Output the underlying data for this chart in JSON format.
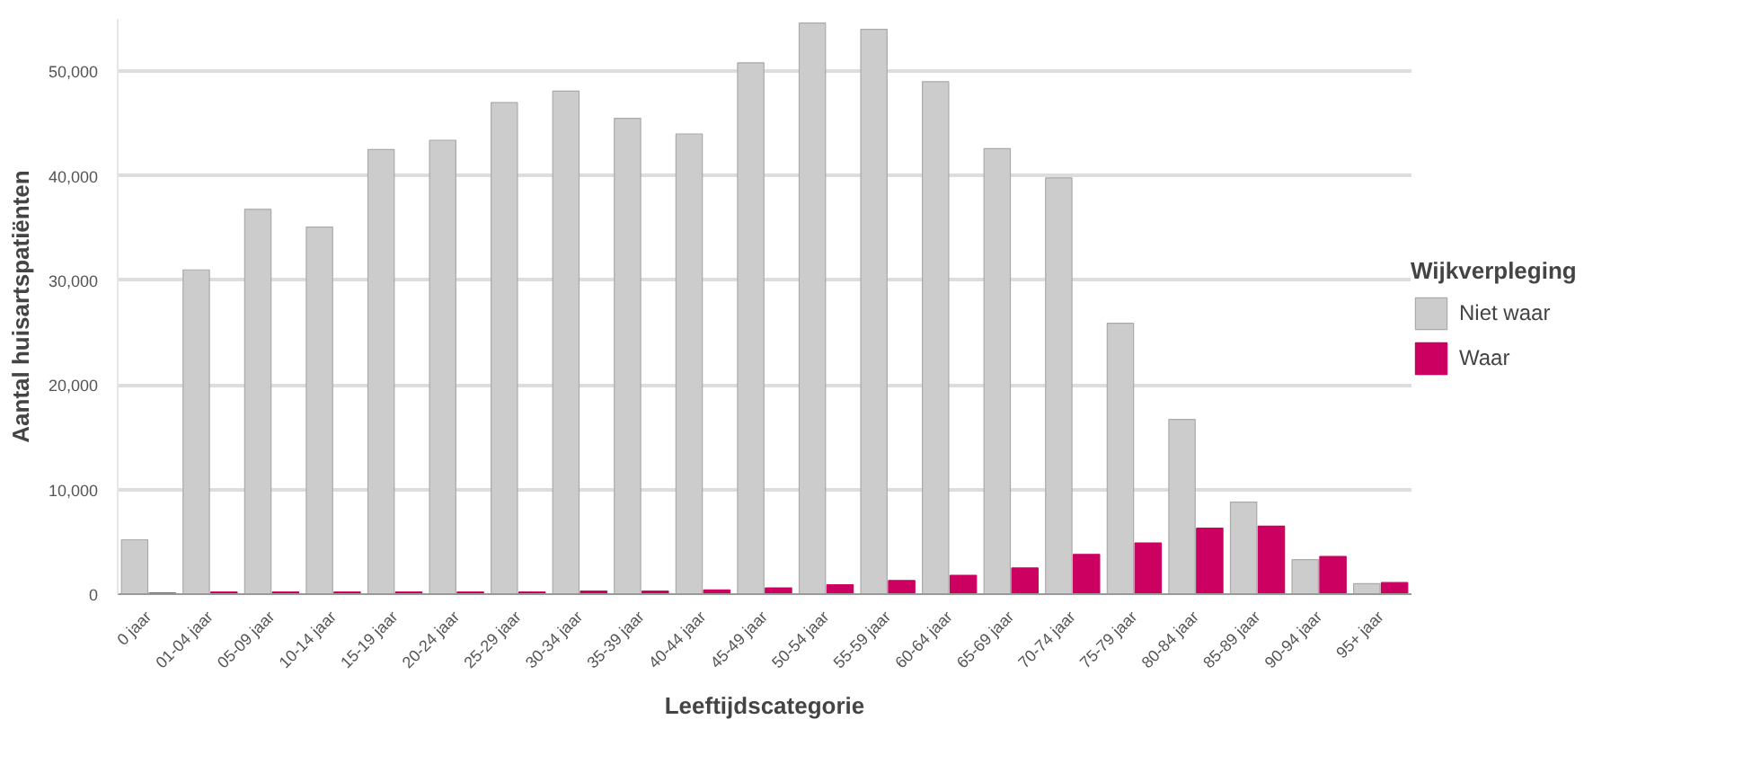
{
  "chart_data": {
    "type": "bar",
    "xlabel": "Leeftijdscategorie",
    "ylabel": "Aantal huisartspatiënten",
    "legend_title": "Wijkverpleging",
    "categories": [
      "0 jaar",
      "01-04 jaar",
      "05-09 jaar",
      "10-14 jaar",
      "15-19 jaar",
      "20-24 jaar",
      "25-29 jaar",
      "30-34 jaar",
      "35-39 jaar",
      "40-44 jaar",
      "45-49 jaar",
      "50-54 jaar",
      "55-59 jaar",
      "60-64 jaar",
      "65-69 jaar",
      "70-74 jaar",
      "75-79 jaar",
      "80-84 jaar",
      "85-89 jaar",
      "90-94 jaar",
      "95+ jaar"
    ],
    "series": [
      {
        "name": "Niet waar",
        "color": "#cccccc",
        "values": [
          5200,
          31000,
          36800,
          35100,
          42500,
          43400,
          47000,
          48100,
          45500,
          44000,
          50800,
          54600,
          54000,
          49000,
          42600,
          39800,
          25900,
          16700,
          8800,
          3300,
          1000
        ]
      },
      {
        "name": "Waar",
        "color": "#cc0060",
        "values": [
          100,
          200,
          200,
          200,
          200,
          200,
          200,
          300,
          300,
          400,
          600,
          900,
          1300,
          1800,
          2500,
          3800,
          4900,
          6300,
          6500,
          3600,
          1100
        ]
      }
    ],
    "ylim": [
      0,
      55000
    ],
    "yticks": [
      {
        "value": 0,
        "label": "0"
      },
      {
        "value": 10000,
        "label": "10,000"
      },
      {
        "value": 20000,
        "label": "20,000"
      },
      {
        "value": 30000,
        "label": "30,000"
      },
      {
        "value": 40000,
        "label": "40,000"
      },
      {
        "value": 50000,
        "label": "50,000"
      }
    ],
    "grid": "y",
    "legend": "right"
  }
}
